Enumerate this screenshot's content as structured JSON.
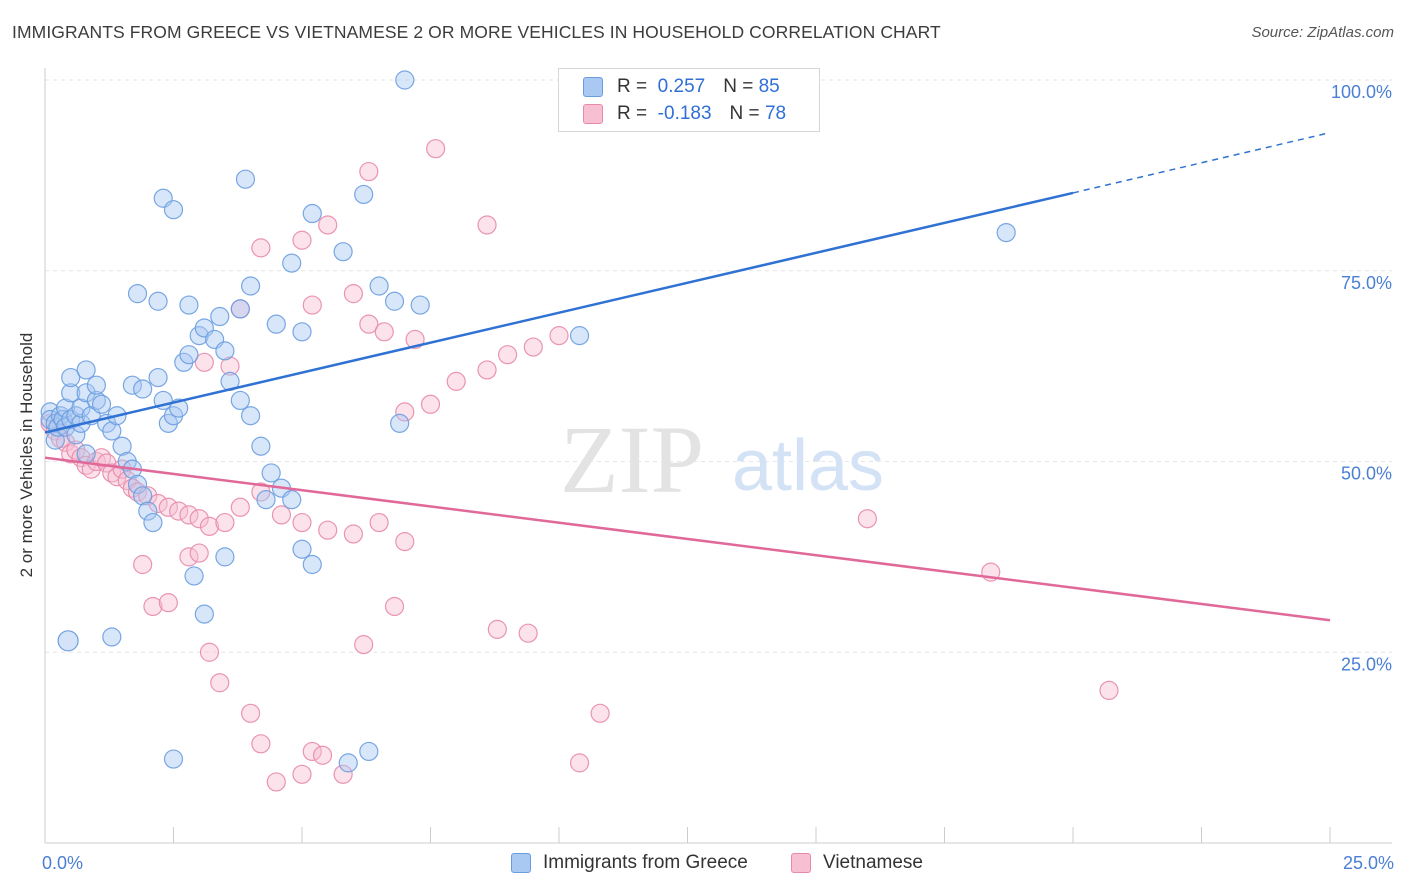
{
  "title": "IMMIGRANTS FROM GREECE VS VIETNAMESE 2 OR MORE VEHICLES IN HOUSEHOLD CORRELATION CHART",
  "source": "Source: ZipAtlas.com",
  "watermark": {
    "zip": "ZIP",
    "atlas": "atlas"
  },
  "legend": {
    "items": [
      {
        "name": "Immigrants from Greece",
        "r_label": "R =",
        "r_value": "0.257",
        "n_label": "N =",
        "n_value": "85",
        "fill": "#a9c8f2",
        "stroke": "#6a9de0"
      },
      {
        "name": "Vietnamese",
        "r_label": "R =",
        "r_value": "-0.183",
        "n_label": "N =",
        "n_value": "78",
        "fill": "#f7bfd2",
        "stroke": "#e88aab"
      }
    ]
  },
  "colors": {
    "blue_line": "#2f72d3",
    "pink_line": "#e0699a",
    "axis_text": "#4a7fd4",
    "grid": "#e6e6e6"
  },
  "chart_data": {
    "type": "scatter",
    "title": "IMMIGRANTS FROM GREECE VS VIETNAMESE 2 OR MORE VEHICLES IN HOUSEHOLD CORRELATION CHART",
    "xlabel": "",
    "ylabel": "2 or more Vehicles in Household",
    "xlim": [
      0,
      25
    ],
    "ylim": [
      0,
      100
    ],
    "x_tick_labels": [
      "0.0%",
      "25.0%"
    ],
    "y_tick_labels": [
      "25.0%",
      "50.0%",
      "75.0%",
      "100.0%"
    ],
    "y_ticks": [
      25,
      50,
      75,
      100
    ],
    "grid": true,
    "series": [
      {
        "name": "Immigrants from Greece",
        "trend": {
          "x": [
            0,
            20
          ],
          "y": [
            53.8,
            85.2
          ],
          "dashed_to": [
            25,
            93.1
          ]
        },
        "points": [
          [
            0.1,
            56.5
          ],
          [
            0.1,
            55.5
          ],
          [
            0.2,
            55.0
          ],
          [
            0.2,
            52.8
          ],
          [
            0.25,
            54.5
          ],
          [
            0.3,
            56.0
          ],
          [
            0.35,
            55.5
          ],
          [
            0.4,
            57.0
          ],
          [
            0.4,
            54.5
          ],
          [
            0.5,
            55.5
          ],
          [
            0.5,
            59.0
          ],
          [
            0.5,
            61.0
          ],
          [
            0.6,
            56.0
          ],
          [
            0.6,
            53.5
          ],
          [
            0.7,
            55.0
          ],
          [
            0.7,
            57.0
          ],
          [
            0.8,
            51.0
          ],
          [
            0.8,
            59.0
          ],
          [
            0.8,
            62.0
          ],
          [
            0.9,
            56.0
          ],
          [
            1.0,
            58.0
          ],
          [
            1.0,
            60.0
          ],
          [
            1.1,
            57.5
          ],
          [
            1.2,
            55.0
          ],
          [
            1.3,
            54.0
          ],
          [
            1.4,
            56.0
          ],
          [
            1.5,
            52.0
          ],
          [
            1.6,
            50.0
          ],
          [
            1.7,
            49.0
          ],
          [
            1.8,
            47.0
          ],
          [
            1.9,
            45.5
          ],
          [
            2.0,
            43.5
          ],
          [
            2.1,
            42.0
          ],
          [
            1.7,
            60.0
          ],
          [
            1.9,
            59.5
          ],
          [
            2.2,
            61.0
          ],
          [
            2.3,
            58.0
          ],
          [
            2.4,
            55.0
          ],
          [
            2.5,
            56.0
          ],
          [
            2.6,
            57.0
          ],
          [
            2.7,
            63.0
          ],
          [
            2.8,
            64.0
          ],
          [
            3.0,
            66.5
          ],
          [
            3.1,
            67.5
          ],
          [
            3.3,
            66.0
          ],
          [
            3.5,
            64.5
          ],
          [
            3.6,
            60.5
          ],
          [
            3.8,
            58.0
          ],
          [
            4.0,
            56.0
          ],
          [
            4.2,
            52.0
          ],
          [
            4.4,
            48.5
          ],
          [
            4.6,
            46.5
          ],
          [
            4.8,
            45.0
          ],
          [
            5.0,
            38.5
          ],
          [
            5.2,
            36.5
          ],
          [
            1.8,
            72.0
          ],
          [
            2.2,
            71.0
          ],
          [
            2.8,
            70.5
          ],
          [
            3.4,
            69.0
          ],
          [
            3.8,
            70.0
          ],
          [
            4.5,
            68.0
          ],
          [
            5.0,
            67.0
          ],
          [
            2.3,
            84.5
          ],
          [
            2.5,
            83.0
          ],
          [
            4.8,
            76.0
          ],
          [
            4.0,
            73.0
          ],
          [
            3.9,
            87.0
          ],
          [
            5.2,
            82.5
          ],
          [
            6.2,
            85.0
          ],
          [
            5.8,
            77.5
          ],
          [
            6.5,
            73.0
          ],
          [
            6.8,
            71.0
          ],
          [
            7.3,
            70.5
          ],
          [
            6.9,
            55.0
          ],
          [
            4.3,
            45.0
          ],
          [
            3.5,
            37.5
          ],
          [
            2.9,
            35.0
          ],
          [
            3.1,
            30.0
          ],
          [
            1.3,
            27.0
          ],
          [
            2.5,
            11.0
          ],
          [
            5.9,
            10.5
          ],
          [
            6.3,
            12.0
          ],
          [
            10.4,
            66.5
          ],
          [
            18.7,
            80.0
          ],
          [
            7.0,
            100.0
          ]
        ]
      },
      {
        "name": "Vietnamese",
        "trend": {
          "x": [
            0,
            25
          ],
          "y": [
            50.5,
            29.2
          ]
        },
        "points": [
          [
            0.1,
            55.0
          ],
          [
            0.2,
            54.0
          ],
          [
            0.3,
            53.0
          ],
          [
            0.4,
            52.5
          ],
          [
            0.5,
            51.0
          ],
          [
            0.6,
            51.5
          ],
          [
            0.7,
            50.5
          ],
          [
            0.8,
            49.5
          ],
          [
            0.9,
            49.0
          ],
          [
            1.0,
            50.0
          ],
          [
            1.1,
            50.5
          ],
          [
            1.2,
            49.8
          ],
          [
            1.3,
            48.5
          ],
          [
            1.4,
            48.0
          ],
          [
            1.5,
            49.0
          ],
          [
            1.6,
            47.5
          ],
          [
            1.7,
            46.5
          ],
          [
            1.8,
            46.0
          ],
          [
            2.0,
            45.5
          ],
          [
            2.2,
            44.5
          ],
          [
            2.4,
            44.0
          ],
          [
            2.6,
            43.5
          ],
          [
            2.8,
            43.0
          ],
          [
            3.0,
            42.5
          ],
          [
            3.2,
            41.5
          ],
          [
            3.5,
            42.0
          ],
          [
            3.8,
            44.0
          ],
          [
            4.2,
            46.0
          ],
          [
            4.6,
            43.0
          ],
          [
            5.0,
            42.0
          ],
          [
            5.5,
            41.0
          ],
          [
            6.0,
            40.5
          ],
          [
            6.5,
            42.0
          ],
          [
            7.0,
            39.5
          ],
          [
            7.5,
            57.5
          ],
          [
            8.0,
            60.5
          ],
          [
            8.6,
            62.0
          ],
          [
            9.0,
            64.0
          ],
          [
            9.5,
            65.0
          ],
          [
            10.0,
            66.5
          ],
          [
            3.1,
            63.0
          ],
          [
            3.6,
            62.5
          ],
          [
            3.8,
            70.0
          ],
          [
            4.2,
            78.0
          ],
          [
            5.0,
            79.0
          ],
          [
            5.5,
            81.0
          ],
          [
            6.0,
            72.0
          ],
          [
            6.3,
            68.0
          ],
          [
            6.6,
            67.0
          ],
          [
            7.2,
            66.0
          ],
          [
            5.2,
            70.5
          ],
          [
            7.0,
            56.5
          ],
          [
            1.9,
            36.5
          ],
          [
            2.1,
            31.0
          ],
          [
            2.4,
            31.5
          ],
          [
            2.8,
            37.5
          ],
          [
            3.0,
            38.0
          ],
          [
            3.2,
            25.0
          ],
          [
            3.4,
            21.0
          ],
          [
            4.0,
            17.0
          ],
          [
            4.2,
            13.0
          ],
          [
            4.5,
            8.0
          ],
          [
            5.0,
            9.0
          ],
          [
            5.2,
            12.0
          ],
          [
            5.4,
            11.5
          ],
          [
            5.8,
            9.0
          ],
          [
            6.2,
            26.0
          ],
          [
            6.8,
            31.0
          ],
          [
            6.3,
            88.0
          ],
          [
            7.6,
            91.0
          ],
          [
            8.6,
            81.0
          ],
          [
            8.8,
            28.0
          ],
          [
            9.4,
            27.5
          ],
          [
            10.4,
            10.5
          ],
          [
            10.8,
            17.0
          ],
          [
            16.0,
            42.5
          ],
          [
            18.4,
            35.5
          ],
          [
            20.7,
            20.0
          ]
        ]
      }
    ]
  }
}
